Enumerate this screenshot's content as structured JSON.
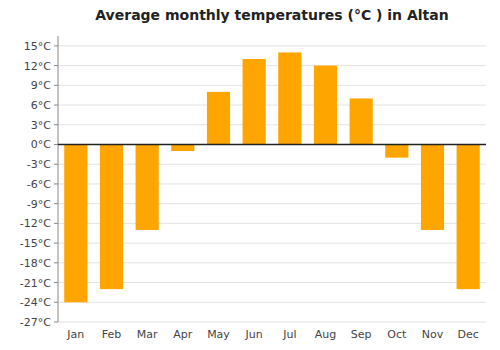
{
  "chart_data": {
    "type": "bar",
    "title": "Average monthly temperatures (°C ) in Altan",
    "categories": [
      "Jan",
      "Feb",
      "Mar",
      "Apr",
      "May",
      "Jun",
      "Jul",
      "Aug",
      "Sep",
      "Oct",
      "Nov",
      "Dec"
    ],
    "values": [
      -24,
      -22,
      -13,
      -1,
      8,
      13,
      14,
      12,
      7,
      -2,
      -13,
      -22
    ],
    "color": "#FFA500",
    "ylim": [
      -27,
      16.5
    ],
    "yticks": [
      {
        "value": -27,
        "label": "-27°C"
      },
      {
        "value": -24,
        "label": "-24°C"
      },
      {
        "value": -21,
        "label": "-21°C"
      },
      {
        "value": -18,
        "label": "-18°C"
      },
      {
        "value": -15,
        "label": "-15°C"
      },
      {
        "value": -12,
        "label": "-12°C"
      },
      {
        "value": -9,
        "label": "-9°C"
      },
      {
        "value": -6,
        "label": "-6°C"
      },
      {
        "value": -3,
        "label": "-3°C"
      },
      {
        "value": 0,
        "label": "0°C"
      },
      {
        "value": 3,
        "label": "3°C"
      },
      {
        "value": 6,
        "label": "6°C"
      },
      {
        "value": 9,
        "label": "9°C"
      },
      {
        "value": 12,
        "label": "12°C"
      },
      {
        "value": 15,
        "label": "15°C"
      }
    ],
    "grid": true
  }
}
